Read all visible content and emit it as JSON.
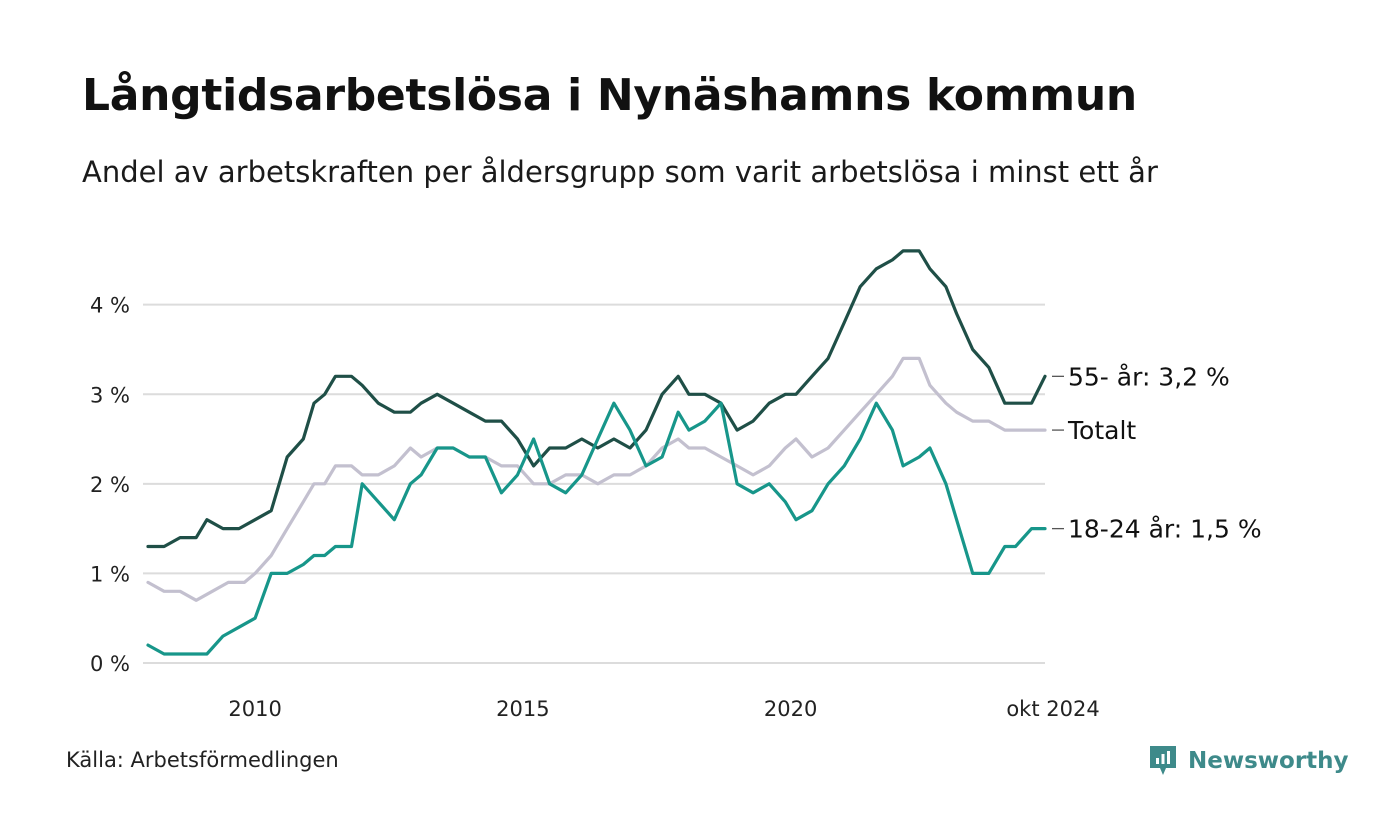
{
  "title": "Långtidsarbetslösa i Nynäshamns kommun",
  "subtitle": "Andel av arbetskraften per åldersgrupp som varit arbetslösa i minst ett år",
  "source": "Källa: Arbetsförmedlingen",
  "brand": "Newsworthy",
  "colors": {
    "s55": "#1f4f47",
    "total": "#c3c0cf",
    "s1824": "#17968a",
    "grid": "#dcdcdc",
    "brand": "#3e8a8a"
  },
  "chart_data": {
    "type": "line",
    "title": "Långtidsarbetslösa i Nynäshamns kommun",
    "ylabel": "",
    "xlabel": "",
    "ylim": [
      0,
      4.8
    ],
    "xlim": [
      2008.0,
      2024.75
    ],
    "y_ticks": [
      0,
      1,
      2,
      3,
      4
    ],
    "y_tick_labels": [
      "0 %",
      "1 %",
      "2 %",
      "3 %",
      "4 %"
    ],
    "x_ticks": [
      2010,
      2015,
      2020,
      2024.75
    ],
    "x_tick_labels": [
      "2010",
      "2015",
      "2020",
      "okt 2024"
    ],
    "series": [
      {
        "name": "Totalt",
        "key": "total",
        "end_label": "Totalt",
        "points": [
          [
            2008.0,
            0.9
          ],
          [
            2008.3,
            0.8
          ],
          [
            2008.6,
            0.8
          ],
          [
            2008.9,
            0.7
          ],
          [
            2009.2,
            0.8
          ],
          [
            2009.5,
            0.9
          ],
          [
            2009.8,
            0.9
          ],
          [
            2010.0,
            1.0
          ],
          [
            2010.3,
            1.2
          ],
          [
            2010.6,
            1.5
          ],
          [
            2010.9,
            1.8
          ],
          [
            2011.1,
            2.0
          ],
          [
            2011.3,
            2.0
          ],
          [
            2011.5,
            2.2
          ],
          [
            2011.8,
            2.2
          ],
          [
            2012.0,
            2.1
          ],
          [
            2012.3,
            2.1
          ],
          [
            2012.6,
            2.2
          ],
          [
            2012.9,
            2.4
          ],
          [
            2013.1,
            2.3
          ],
          [
            2013.4,
            2.4
          ],
          [
            2013.7,
            2.4
          ],
          [
            2014.0,
            2.3
          ],
          [
            2014.3,
            2.3
          ],
          [
            2014.6,
            2.2
          ],
          [
            2014.9,
            2.2
          ],
          [
            2015.2,
            2.0
          ],
          [
            2015.5,
            2.0
          ],
          [
            2015.8,
            2.1
          ],
          [
            2016.1,
            2.1
          ],
          [
            2016.4,
            2.0
          ],
          [
            2016.7,
            2.1
          ],
          [
            2017.0,
            2.1
          ],
          [
            2017.3,
            2.2
          ],
          [
            2017.6,
            2.4
          ],
          [
            2017.9,
            2.5
          ],
          [
            2018.1,
            2.4
          ],
          [
            2018.4,
            2.4
          ],
          [
            2018.7,
            2.3
          ],
          [
            2019.0,
            2.2
          ],
          [
            2019.3,
            2.1
          ],
          [
            2019.6,
            2.2
          ],
          [
            2019.9,
            2.4
          ],
          [
            2020.1,
            2.5
          ],
          [
            2020.4,
            2.3
          ],
          [
            2020.7,
            2.4
          ],
          [
            2021.0,
            2.6
          ],
          [
            2021.3,
            2.8
          ],
          [
            2021.6,
            3.0
          ],
          [
            2021.9,
            3.2
          ],
          [
            2022.1,
            3.4
          ],
          [
            2022.4,
            3.4
          ],
          [
            2022.6,
            3.1
          ],
          [
            2022.9,
            2.9
          ],
          [
            2023.1,
            2.8
          ],
          [
            2023.4,
            2.7
          ],
          [
            2023.7,
            2.7
          ],
          [
            2024.0,
            2.6
          ],
          [
            2024.2,
            2.6
          ],
          [
            2024.5,
            2.6
          ],
          [
            2024.75,
            2.6
          ]
        ]
      },
      {
        "name": "55- år",
        "key": "s55",
        "end_label": "55- år: 3,2 %",
        "points": [
          [
            2008.0,
            1.3
          ],
          [
            2008.3,
            1.3
          ],
          [
            2008.6,
            1.4
          ],
          [
            2008.9,
            1.4
          ],
          [
            2009.1,
            1.6
          ],
          [
            2009.4,
            1.5
          ],
          [
            2009.7,
            1.5
          ],
          [
            2010.0,
            1.6
          ],
          [
            2010.3,
            1.7
          ],
          [
            2010.6,
            2.3
          ],
          [
            2010.9,
            2.5
          ],
          [
            2011.1,
            2.9
          ],
          [
            2011.3,
            3.0
          ],
          [
            2011.5,
            3.2
          ],
          [
            2011.8,
            3.2
          ],
          [
            2012.0,
            3.1
          ],
          [
            2012.3,
            2.9
          ],
          [
            2012.6,
            2.8
          ],
          [
            2012.9,
            2.8
          ],
          [
            2013.1,
            2.9
          ],
          [
            2013.4,
            3.0
          ],
          [
            2013.7,
            2.9
          ],
          [
            2014.0,
            2.8
          ],
          [
            2014.3,
            2.7
          ],
          [
            2014.6,
            2.7
          ],
          [
            2014.9,
            2.5
          ],
          [
            2015.2,
            2.2
          ],
          [
            2015.5,
            2.4
          ],
          [
            2015.8,
            2.4
          ],
          [
            2016.1,
            2.5
          ],
          [
            2016.4,
            2.4
          ],
          [
            2016.7,
            2.5
          ],
          [
            2017.0,
            2.4
          ],
          [
            2017.3,
            2.6
          ],
          [
            2017.6,
            3.0
          ],
          [
            2017.9,
            3.2
          ],
          [
            2018.1,
            3.0
          ],
          [
            2018.4,
            3.0
          ],
          [
            2018.7,
            2.9
          ],
          [
            2019.0,
            2.6
          ],
          [
            2019.3,
            2.7
          ],
          [
            2019.6,
            2.9
          ],
          [
            2019.9,
            3.0
          ],
          [
            2020.1,
            3.0
          ],
          [
            2020.4,
            3.2
          ],
          [
            2020.7,
            3.4
          ],
          [
            2021.0,
            3.8
          ],
          [
            2021.3,
            4.2
          ],
          [
            2021.6,
            4.4
          ],
          [
            2021.9,
            4.5
          ],
          [
            2022.1,
            4.6
          ],
          [
            2022.4,
            4.6
          ],
          [
            2022.6,
            4.4
          ],
          [
            2022.9,
            4.2
          ],
          [
            2023.1,
            3.9
          ],
          [
            2023.4,
            3.5
          ],
          [
            2023.7,
            3.3
          ],
          [
            2024.0,
            2.9
          ],
          [
            2024.2,
            2.9
          ],
          [
            2024.5,
            2.9
          ],
          [
            2024.75,
            3.2
          ]
        ]
      },
      {
        "name": "18-24 år",
        "key": "s1824",
        "end_label": "18-24 år: 1,5 %",
        "points": [
          [
            2008.0,
            0.2
          ],
          [
            2008.3,
            0.1
          ],
          [
            2008.6,
            0.1
          ],
          [
            2008.9,
            0.1
          ],
          [
            2009.1,
            0.1
          ],
          [
            2009.4,
            0.3
          ],
          [
            2009.7,
            0.4
          ],
          [
            2010.0,
            0.5
          ],
          [
            2010.3,
            1.0
          ],
          [
            2010.6,
            1.0
          ],
          [
            2010.9,
            1.1
          ],
          [
            2011.1,
            1.2
          ],
          [
            2011.3,
            1.2
          ],
          [
            2011.5,
            1.3
          ],
          [
            2011.8,
            1.3
          ],
          [
            2012.0,
            2.0
          ],
          [
            2012.3,
            1.8
          ],
          [
            2012.6,
            1.6
          ],
          [
            2012.9,
            2.0
          ],
          [
            2013.1,
            2.1
          ],
          [
            2013.4,
            2.4
          ],
          [
            2013.7,
            2.4
          ],
          [
            2014.0,
            2.3
          ],
          [
            2014.3,
            2.3
          ],
          [
            2014.6,
            1.9
          ],
          [
            2014.9,
            2.1
          ],
          [
            2015.2,
            2.5
          ],
          [
            2015.5,
            2.0
          ],
          [
            2015.8,
            1.9
          ],
          [
            2016.1,
            2.1
          ],
          [
            2016.4,
            2.5
          ],
          [
            2016.7,
            2.9
          ],
          [
            2017.0,
            2.6
          ],
          [
            2017.3,
            2.2
          ],
          [
            2017.6,
            2.3
          ],
          [
            2017.9,
            2.8
          ],
          [
            2018.1,
            2.6
          ],
          [
            2018.4,
            2.7
          ],
          [
            2018.7,
            2.9
          ],
          [
            2019.0,
            2.0
          ],
          [
            2019.3,
            1.9
          ],
          [
            2019.6,
            2.0
          ],
          [
            2019.9,
            1.8
          ],
          [
            2020.1,
            1.6
          ],
          [
            2020.4,
            1.7
          ],
          [
            2020.7,
            2.0
          ],
          [
            2021.0,
            2.2
          ],
          [
            2021.3,
            2.5
          ],
          [
            2021.6,
            2.9
          ],
          [
            2021.9,
            2.6
          ],
          [
            2022.1,
            2.2
          ],
          [
            2022.4,
            2.3
          ],
          [
            2022.6,
            2.4
          ],
          [
            2022.9,
            2.0
          ],
          [
            2023.1,
            1.6
          ],
          [
            2023.4,
            1.0
          ],
          [
            2023.7,
            1.0
          ],
          [
            2024.0,
            1.3
          ],
          [
            2024.2,
            1.3
          ],
          [
            2024.5,
            1.5
          ],
          [
            2024.75,
            1.5
          ]
        ]
      }
    ]
  }
}
